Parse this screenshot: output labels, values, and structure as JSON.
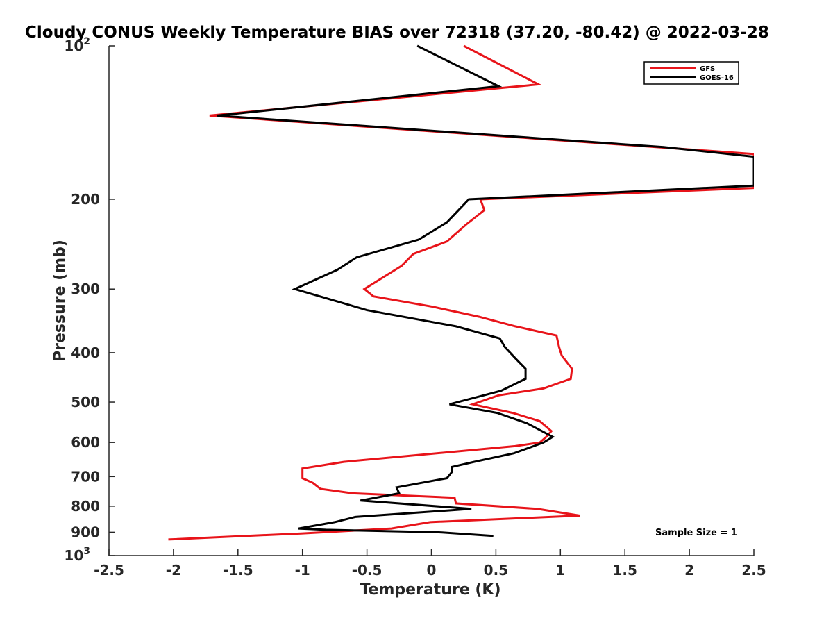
{
  "chart_data": {
    "type": "line",
    "title": "Cloudy CONUS Weekly Temperature BIAS over 72318 (37.20, -80.42) @ 2022-03-28",
    "xlabel": "Temperature (K)",
    "ylabel": "Pressure (mb)",
    "xlim": [
      -2.5,
      2.5
    ],
    "ylim": [
      100,
      1000
    ],
    "yscale": "log",
    "yreversed": true,
    "x_ticks": [
      {
        "value": -2.5,
        "label": "-2.5"
      },
      {
        "value": -2,
        "label": "-2"
      },
      {
        "value": -1.5,
        "label": "-1.5"
      },
      {
        "value": -1,
        "label": "-1"
      },
      {
        "value": -0.5,
        "label": "-0.5"
      },
      {
        "value": 0,
        "label": "0"
      },
      {
        "value": 0.5,
        "label": "0.5"
      },
      {
        "value": 1,
        "label": "1"
      },
      {
        "value": 1.5,
        "label": "1.5"
      },
      {
        "value": 2,
        "label": "2"
      },
      {
        "value": 2.5,
        "label": "2.5"
      }
    ],
    "y_ticks": [
      {
        "value": 100,
        "base": "10",
        "exp": "2"
      },
      {
        "value": 200,
        "label": "200"
      },
      {
        "value": 300,
        "label": "300"
      },
      {
        "value": 400,
        "label": "400"
      },
      {
        "value": 500,
        "label": "500"
      },
      {
        "value": 600,
        "label": "600"
      },
      {
        "value": 700,
        "label": "700"
      },
      {
        "value": 800,
        "label": "800"
      },
      {
        "value": 900,
        "label": "900"
      },
      {
        "value": 1000,
        "base": "10",
        "exp": "3"
      }
    ],
    "legend_position": "top-right",
    "series": [
      {
        "name": "GFS",
        "color": "#e8141a",
        "points": [
          [
            0.25,
            100
          ],
          [
            0.83,
            119
          ],
          [
            -1.72,
            137
          ],
          [
            2.5,
            163
          ],
          [
            2.5,
            190
          ],
          [
            0.38,
            200
          ],
          [
            0.41,
            210
          ],
          [
            0.27,
            224
          ],
          [
            0.12,
            242
          ],
          [
            -0.14,
            256
          ],
          [
            -0.23,
            270
          ],
          [
            -0.52,
            300
          ],
          [
            -0.45,
            310
          ],
          [
            0.01,
            325
          ],
          [
            0.37,
            340
          ],
          [
            0.65,
            355
          ],
          [
            0.97,
            370
          ],
          [
            0.99,
            390
          ],
          [
            1.01,
            405
          ],
          [
            1.09,
            430
          ],
          [
            1.08,
            450
          ],
          [
            0.87,
            470
          ],
          [
            0.52,
            485
          ],
          [
            0.32,
            505
          ],
          [
            0.63,
            525
          ],
          [
            0.84,
            545
          ],
          [
            0.93,
            570
          ],
          [
            0.89,
            585
          ],
          [
            0.84,
            600
          ],
          [
            0.65,
            610
          ],
          [
            -0.68,
            655
          ],
          [
            -1.0,
            675
          ],
          [
            -1.0,
            705
          ],
          [
            -0.92,
            720
          ],
          [
            -0.86,
            740
          ],
          [
            -0.61,
            755
          ],
          [
            0.18,
            770
          ],
          [
            0.19,
            790
          ],
          [
            0.82,
            810
          ],
          [
            1.15,
            835
          ],
          [
            -0.01,
            860
          ],
          [
            -0.31,
            885
          ],
          [
            -1.01,
            905
          ],
          [
            -2.04,
            930
          ]
        ]
      },
      {
        "name": "GOES-16",
        "color": "#000000",
        "points": [
          [
            -0.11,
            100
          ],
          [
            0.52,
            120
          ],
          [
            -1.66,
            137
          ],
          [
            1.8,
            158
          ],
          [
            2.5,
            165
          ],
          [
            2.5,
            188
          ],
          [
            0.29,
            200
          ],
          [
            0.12,
            222
          ],
          [
            -0.1,
            240
          ],
          [
            -0.58,
            260
          ],
          [
            -0.73,
            275
          ],
          [
            -1.06,
            300
          ],
          [
            -0.5,
            330
          ],
          [
            0.19,
            355
          ],
          [
            0.53,
            375
          ],
          [
            0.57,
            390
          ],
          [
            0.65,
            410
          ],
          [
            0.73,
            430
          ],
          [
            0.73,
            450
          ],
          [
            0.54,
            475
          ],
          [
            0.14,
            505
          ],
          [
            0.51,
            525
          ],
          [
            0.74,
            550
          ],
          [
            0.94,
            585
          ],
          [
            0.87,
            600
          ],
          [
            0.64,
            630
          ],
          [
            0.33,
            655
          ],
          [
            0.16,
            670
          ],
          [
            0.16,
            685
          ],
          [
            0.12,
            705
          ],
          [
            -0.27,
            735
          ],
          [
            -0.25,
            755
          ],
          [
            -0.55,
            780
          ],
          [
            0.31,
            810
          ],
          [
            -0.59,
            840
          ],
          [
            -0.75,
            860
          ],
          [
            -1.03,
            885
          ],
          [
            -0.82,
            890
          ],
          [
            0.05,
            900
          ],
          [
            0.48,
            915
          ]
        ]
      }
    ],
    "annotations": [
      {
        "text": "Sample Size = 1",
        "position": "bottom-right"
      }
    ]
  }
}
